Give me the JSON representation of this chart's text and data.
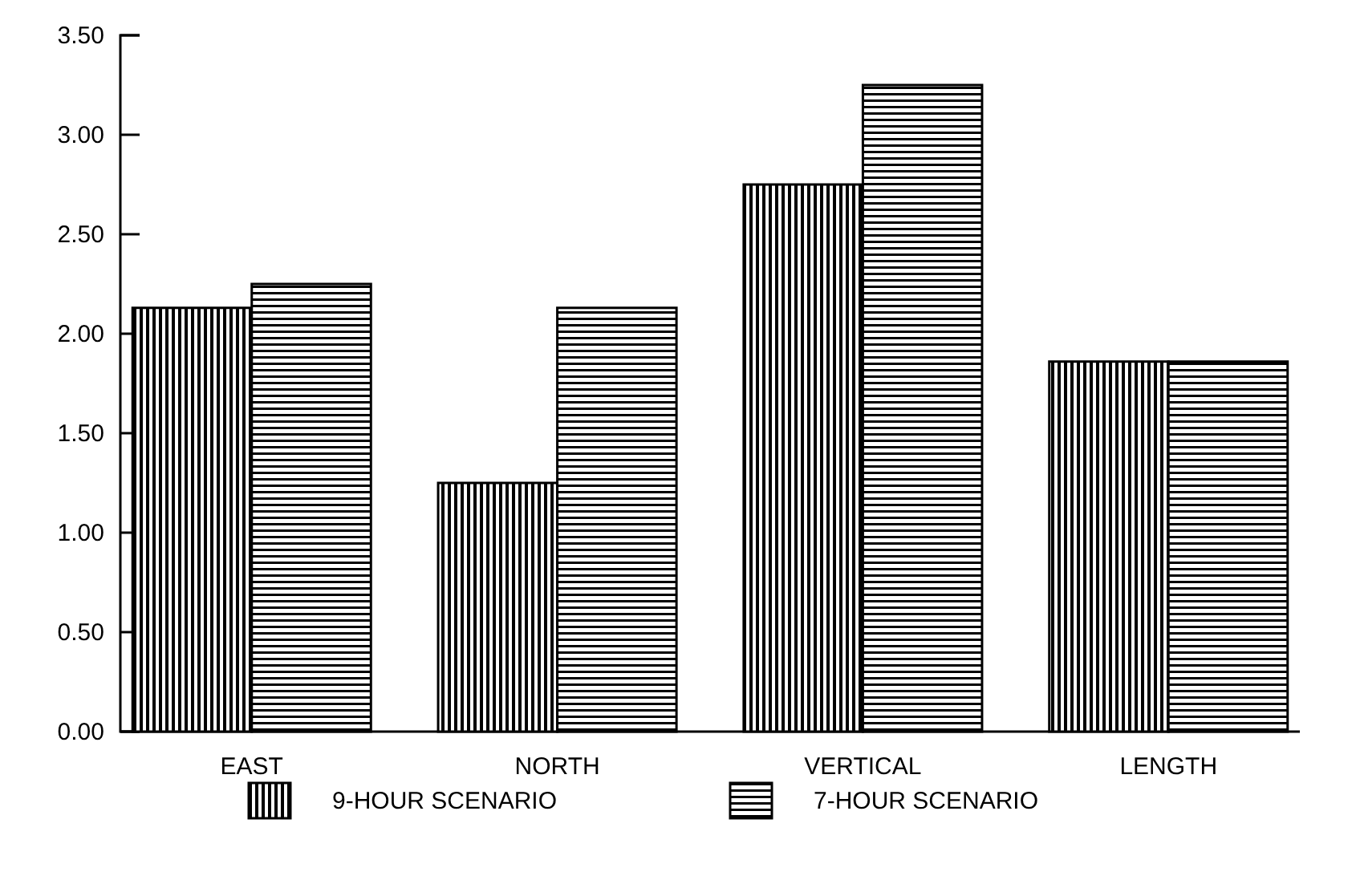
{
  "chart_data": {
    "type": "bar",
    "categories": [
      "EAST",
      "NORTH",
      "VERTICAL",
      "LENGTH"
    ],
    "series": [
      {
        "name": "9-HOUR SCENARIO",
        "color": "#000000",
        "values": [
          2.13,
          1.25,
          2.75,
          1.86
        ]
      },
      {
        "name": "7-HOUR SCENARIO",
        "color": "#000000",
        "values": [
          2.25,
          2.13,
          3.25,
          1.86
        ]
      }
    ],
    "ylim": [
      0,
      3.5
    ],
    "yticks": [
      {
        "value": 0,
        "label": "0.00"
      },
      {
        "value": 0.5,
        "label": "0.50"
      },
      {
        "value": 1,
        "label": "1.00"
      },
      {
        "value": 1.5,
        "label": "1.50"
      },
      {
        "value": 2,
        "label": "2.00"
      },
      {
        "value": 2.5,
        "label": "2.50"
      },
      {
        "value": 3,
        "label": "3.00"
      },
      {
        "value": 3.5,
        "label": "3.50"
      }
    ],
    "legend": "bottom"
  }
}
